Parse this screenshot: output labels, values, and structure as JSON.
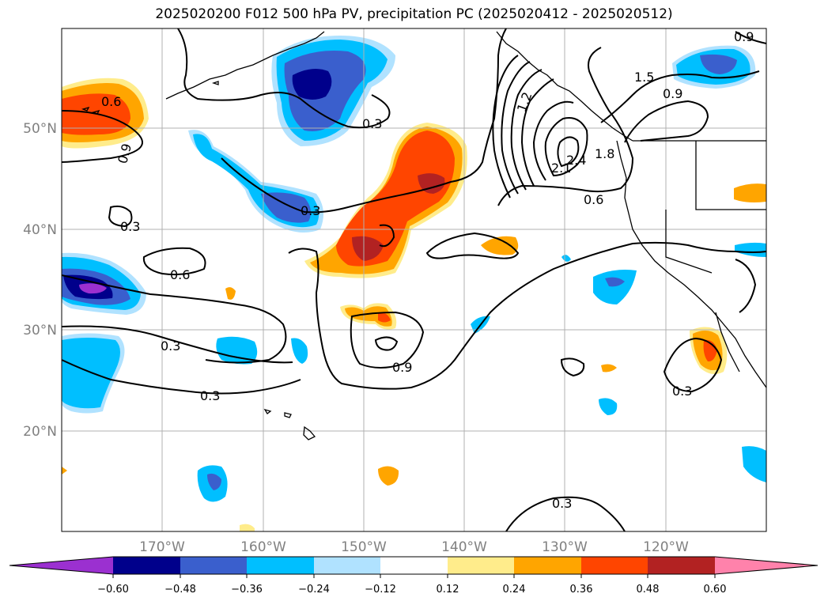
{
  "title": "2025020200 F012 500 hPa PV, precipitation PC (2025020412 - 2025020512)",
  "map": {
    "lat_labels": [
      "50°N",
      "40°N",
      "30°N",
      "20°N"
    ],
    "lon_labels": [
      "170°W",
      "160°W",
      "150°W",
      "140°W",
      "130°W",
      "120°W"
    ],
    "contour_labels": [
      "0.6",
      "0.9",
      "0.3",
      "0.3",
      "0.3",
      "0.6",
      "0.3",
      "0.9",
      "0.3",
      "0.3",
      "0.6",
      "1.2",
      "1.5",
      "0.9",
      "2.1",
      "2.4",
      "1.8",
      "0.9",
      "0.3"
    ],
    "colors": {
      "c_lt_060": "#9b30d0",
      "c_m060_m048": "#00008b",
      "c_m048_m036": "#3a5fcd",
      "c_m036_m024": "#00bfff",
      "c_m024_m012": "#b0e2ff",
      "c_neutral": "#ffffff",
      "c_012_024": "#ffec8b",
      "c_024_036": "#ffa500",
      "c_036_048": "#ff4500",
      "c_048_060": "#b22222",
      "c_gt_060": "#ff82ab"
    }
  },
  "colorbar": {
    "labels": [
      "−0.60",
      "−0.48",
      "−0.36",
      "−0.24",
      "−0.12",
      "0.12",
      "0.24",
      "0.36",
      "0.48",
      "0.60"
    ]
  }
}
